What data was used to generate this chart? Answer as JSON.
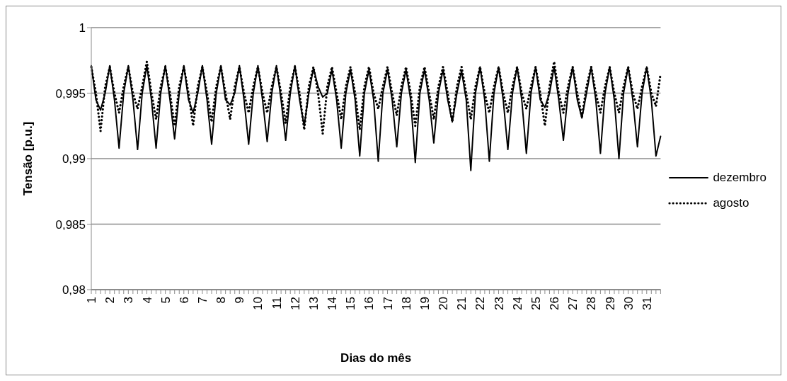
{
  "chart_data": {
    "type": "line",
    "xlabel": "Dias do mês",
    "ylabel": "Tensão [p.u.]",
    "categories": [
      "1",
      null,
      null,
      null,
      "2",
      null,
      null,
      null,
      "3",
      null,
      null,
      null,
      "4",
      null,
      null,
      null,
      "5",
      null,
      null,
      null,
      "6",
      null,
      null,
      null,
      "7",
      null,
      null,
      null,
      "8",
      null,
      null,
      null,
      "9",
      null,
      null,
      null,
      "10",
      null,
      null,
      null,
      "11",
      null,
      null,
      null,
      "12",
      null,
      null,
      null,
      "13",
      null,
      null,
      null,
      "14",
      null,
      null,
      null,
      "15",
      null,
      null,
      null,
      "16",
      null,
      null,
      null,
      "17",
      null,
      null,
      null,
      "18",
      null,
      null,
      null,
      "19",
      null,
      null,
      null,
      "20",
      null,
      null,
      null,
      "21",
      null,
      null,
      null,
      "22",
      null,
      null,
      null,
      "23",
      null,
      null,
      null,
      "24",
      null,
      null,
      null,
      "25",
      null,
      null,
      null,
      "26",
      null,
      null,
      null,
      "27",
      null,
      null,
      null,
      "28",
      null,
      null,
      null,
      "29",
      null,
      null,
      null,
      "30",
      null,
      null,
      null,
      "31",
      null,
      null,
      null
    ],
    "series": [
      {
        "name": "dezembro",
        "color": "#000000",
        "line_style": "solid",
        "values": [
          0.9971,
          0.9945,
          0.9937,
          0.995,
          0.9971,
          0.9945,
          0.9908,
          0.995,
          0.9971,
          0.9945,
          0.9907,
          0.995,
          0.9971,
          0.9945,
          0.9908,
          0.995,
          0.9971,
          0.9945,
          0.9915,
          0.995,
          0.9971,
          0.9945,
          0.9935,
          0.995,
          0.9971,
          0.9945,
          0.9911,
          0.995,
          0.9971,
          0.9945,
          0.9941,
          0.995,
          0.9971,
          0.9945,
          0.9911,
          0.995,
          0.9971,
          0.9945,
          0.9913,
          0.995,
          0.9971,
          0.9945,
          0.9914,
          0.995,
          0.9971,
          0.9945,
          0.9925,
          0.995,
          0.9969,
          0.9955,
          0.9947,
          0.995,
          0.9968,
          0.9945,
          0.9908,
          0.995,
          0.9968,
          0.9945,
          0.9902,
          0.995,
          0.9968,
          0.9945,
          0.9898,
          0.995,
          0.9968,
          0.9945,
          0.9909,
          0.995,
          0.9968,
          0.9945,
          0.9897,
          0.995,
          0.9968,
          0.9945,
          0.9912,
          0.995,
          0.9968,
          0.9945,
          0.9928,
          0.995,
          0.9967,
          0.9945,
          0.9891,
          0.995,
          0.997,
          0.9945,
          0.9898,
          0.995,
          0.997,
          0.9945,
          0.9907,
          0.995,
          0.997,
          0.9945,
          0.9904,
          0.995,
          0.997,
          0.9945,
          0.9939,
          0.995,
          0.997,
          0.9945,
          0.9914,
          0.995,
          0.997,
          0.9945,
          0.9931,
          0.995,
          0.997,
          0.9945,
          0.9904,
          0.995,
          0.997,
          0.9945,
          0.99,
          0.995,
          0.997,
          0.9945,
          0.9909,
          0.995,
          0.997,
          0.9945,
          0.9902,
          0.9917
        ]
      },
      {
        "name": "agosto",
        "color": "#000000",
        "line_style": "dotted",
        "values": [
          0.997,
          0.995,
          0.9921,
          0.9955,
          0.997,
          0.995,
          0.9935,
          0.9955,
          0.997,
          0.995,
          0.9938,
          0.9955,
          0.9974,
          0.995,
          0.993,
          0.9955,
          0.997,
          0.995,
          0.9925,
          0.9955,
          0.997,
          0.995,
          0.9925,
          0.9955,
          0.997,
          0.995,
          0.9928,
          0.9955,
          0.997,
          0.995,
          0.993,
          0.9955,
          0.997,
          0.995,
          0.9935,
          0.9955,
          0.997,
          0.995,
          0.9935,
          0.9955,
          0.997,
          0.995,
          0.9927,
          0.9955,
          0.997,
          0.995,
          0.9922,
          0.9955,
          0.997,
          0.995,
          0.9919,
          0.9955,
          0.997,
          0.995,
          0.993,
          0.9955,
          0.997,
          0.995,
          0.9922,
          0.9955,
          0.997,
          0.995,
          0.9938,
          0.9955,
          0.997,
          0.995,
          0.9933,
          0.9955,
          0.997,
          0.995,
          0.9925,
          0.9955,
          0.997,
          0.995,
          0.993,
          0.9955,
          0.997,
          0.995,
          0.9928,
          0.9955,
          0.997,
          0.995,
          0.993,
          0.9955,
          0.997,
          0.995,
          0.9935,
          0.9955,
          0.997,
          0.995,
          0.9935,
          0.9955,
          0.997,
          0.995,
          0.9938,
          0.9955,
          0.997,
          0.995,
          0.9925,
          0.9955,
          0.9974,
          0.995,
          0.9935,
          0.9955,
          0.997,
          0.995,
          0.9932,
          0.9955,
          0.997,
          0.995,
          0.9935,
          0.9955,
          0.997,
          0.995,
          0.9935,
          0.9955,
          0.997,
          0.995,
          0.9938,
          0.9955,
          0.997,
          0.995,
          0.994,
          0.9965
        ]
      }
    ],
    "ylim": [
      0.98,
      1
    ],
    "yticks": [
      {
        "value": 0.98,
        "label": "0,98"
      },
      {
        "value": 0.985,
        "label": "0,985"
      },
      {
        "value": 0.99,
        "label": "0,99"
      },
      {
        "value": 0.995,
        "label": "0,995"
      },
      {
        "value": 1,
        "label": "1"
      }
    ],
    "grid": "y",
    "legend": "right",
    "marker": "none"
  }
}
